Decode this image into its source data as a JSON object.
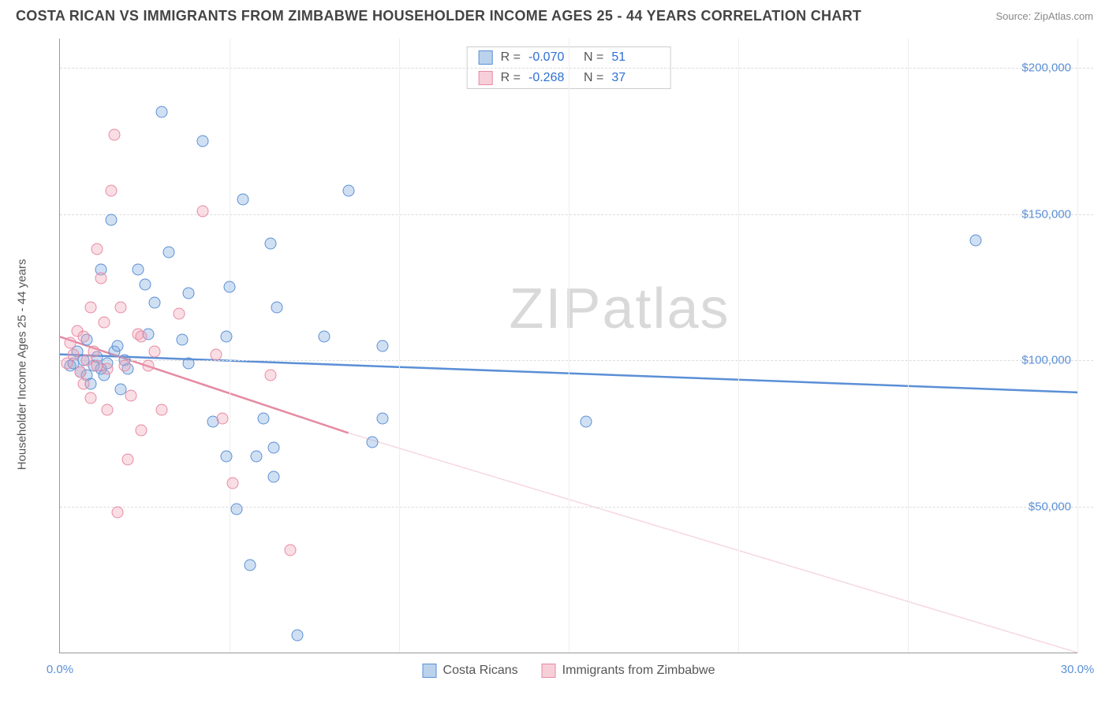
{
  "title": "COSTA RICAN VS IMMIGRANTS FROM ZIMBABWE HOUSEHOLDER INCOME AGES 25 - 44 YEARS CORRELATION CHART",
  "source": "Source: ZipAtlas.com",
  "ylabel": "Householder Income Ages 25 - 44 years",
  "watermark": "ZIPatlas",
  "chart": {
    "type": "scatter",
    "xlim": [
      0,
      30
    ],
    "ylim": [
      0,
      210000
    ],
    "xtick_min": "0.0%",
    "xtick_max": "30.0%",
    "yticks": [
      {
        "value": 50000,
        "label": "$50,000"
      },
      {
        "value": 100000,
        "label": "$100,000"
      },
      {
        "value": 150000,
        "label": "$150,000"
      },
      {
        "value": 200000,
        "label": "$200,000"
      }
    ],
    "xgrid": [
      5,
      10,
      15,
      20,
      25,
      30
    ],
    "marker_size": 15,
    "background_color": "#ffffff",
    "grid_color": "#dddddd",
    "series": [
      {
        "name": "Costa Ricans",
        "color": "#5b8fd6",
        "fill": "rgba(120,165,220,0.35)",
        "R": "-0.070",
        "N": "51",
        "trend": {
          "x1": 0,
          "y1": 102000,
          "x2": 30,
          "y2": 89000,
          "dashFrom": null
        },
        "points": [
          [
            0.3,
            98000
          ],
          [
            0.4,
            99000
          ],
          [
            0.5,
            103000
          ],
          [
            0.6,
            96000
          ],
          [
            0.7,
            100000
          ],
          [
            0.8,
            95000
          ],
          [
            0.8,
            107000
          ],
          [
            0.9,
            92000
          ],
          [
            1.0,
            98000
          ],
          [
            1.1,
            101000
          ],
          [
            1.2,
            97000
          ],
          [
            1.2,
            131000
          ],
          [
            1.3,
            95000
          ],
          [
            1.4,
            99000
          ],
          [
            1.5,
            148000
          ],
          [
            1.6,
            103000
          ],
          [
            1.7,
            105000
          ],
          [
            1.8,
            90000
          ],
          [
            1.9,
            100000
          ],
          [
            2.0,
            97000
          ],
          [
            2.3,
            131000
          ],
          [
            2.5,
            126000
          ],
          [
            2.6,
            109000
          ],
          [
            2.8,
            119600
          ],
          [
            3.0,
            185000
          ],
          [
            3.2,
            137000
          ],
          [
            3.6,
            107000
          ],
          [
            3.8,
            123000
          ],
          [
            3.8,
            99000
          ],
          [
            4.2,
            175000
          ],
          [
            4.5,
            79000
          ],
          [
            4.9,
            108000
          ],
          [
            4.9,
            67000
          ],
          [
            5.0,
            125000
          ],
          [
            5.2,
            49000
          ],
          [
            5.4,
            155000
          ],
          [
            5.6,
            30000
          ],
          [
            5.8,
            67000
          ],
          [
            6.0,
            80000
          ],
          [
            6.2,
            140000
          ],
          [
            6.3,
            60000
          ],
          [
            6.3,
            70000
          ],
          [
            6.4,
            118000
          ],
          [
            7.0,
            6000
          ],
          [
            7.8,
            108000
          ],
          [
            8.5,
            158000
          ],
          [
            9.2,
            72000
          ],
          [
            9.5,
            80000
          ],
          [
            9.5,
            105000
          ],
          [
            15.5,
            79000
          ],
          [
            27.0,
            141000
          ]
        ]
      },
      {
        "name": "Immigrants from Zimbabwe",
        "color": "#e68aa2",
        "fill": "rgba(240,160,180,0.35)",
        "R": "-0.268",
        "N": "37",
        "trend": {
          "x1": 0,
          "y1": 108000,
          "x2": 30,
          "y2": -8000,
          "dashFrom": 8.5
        },
        "points": [
          [
            0.2,
            99000
          ],
          [
            0.3,
            106000
          ],
          [
            0.4,
            102000
          ],
          [
            0.5,
            110000
          ],
          [
            0.6,
            96000
          ],
          [
            0.7,
            108000
          ],
          [
            0.7,
            92000
          ],
          [
            0.8,
            100000
          ],
          [
            0.9,
            118000
          ],
          [
            0.9,
            87000
          ],
          [
            1.0,
            103000
          ],
          [
            1.1,
            98000
          ],
          [
            1.1,
            138000
          ],
          [
            1.2,
            128000
          ],
          [
            1.3,
            113000
          ],
          [
            1.4,
            83000
          ],
          [
            1.4,
            97000
          ],
          [
            1.5,
            158000
          ],
          [
            1.6,
            177000
          ],
          [
            1.7,
            48000
          ],
          [
            1.8,
            118000
          ],
          [
            1.9,
            98000
          ],
          [
            2.0,
            66000
          ],
          [
            2.1,
            88000
          ],
          [
            2.3,
            109000
          ],
          [
            2.4,
            108000
          ],
          [
            2.4,
            76000
          ],
          [
            2.6,
            98000
          ],
          [
            2.8,
            103000
          ],
          [
            3.0,
            83000
          ],
          [
            3.5,
            116000
          ],
          [
            4.2,
            151000
          ],
          [
            4.6,
            102000
          ],
          [
            4.8,
            80000
          ],
          [
            5.1,
            58000
          ],
          [
            6.2,
            95000
          ],
          [
            6.8,
            35000
          ]
        ]
      }
    ]
  },
  "legend": {
    "s1": "Costa Ricans",
    "s2": "Immigrants from Zimbabwe"
  }
}
